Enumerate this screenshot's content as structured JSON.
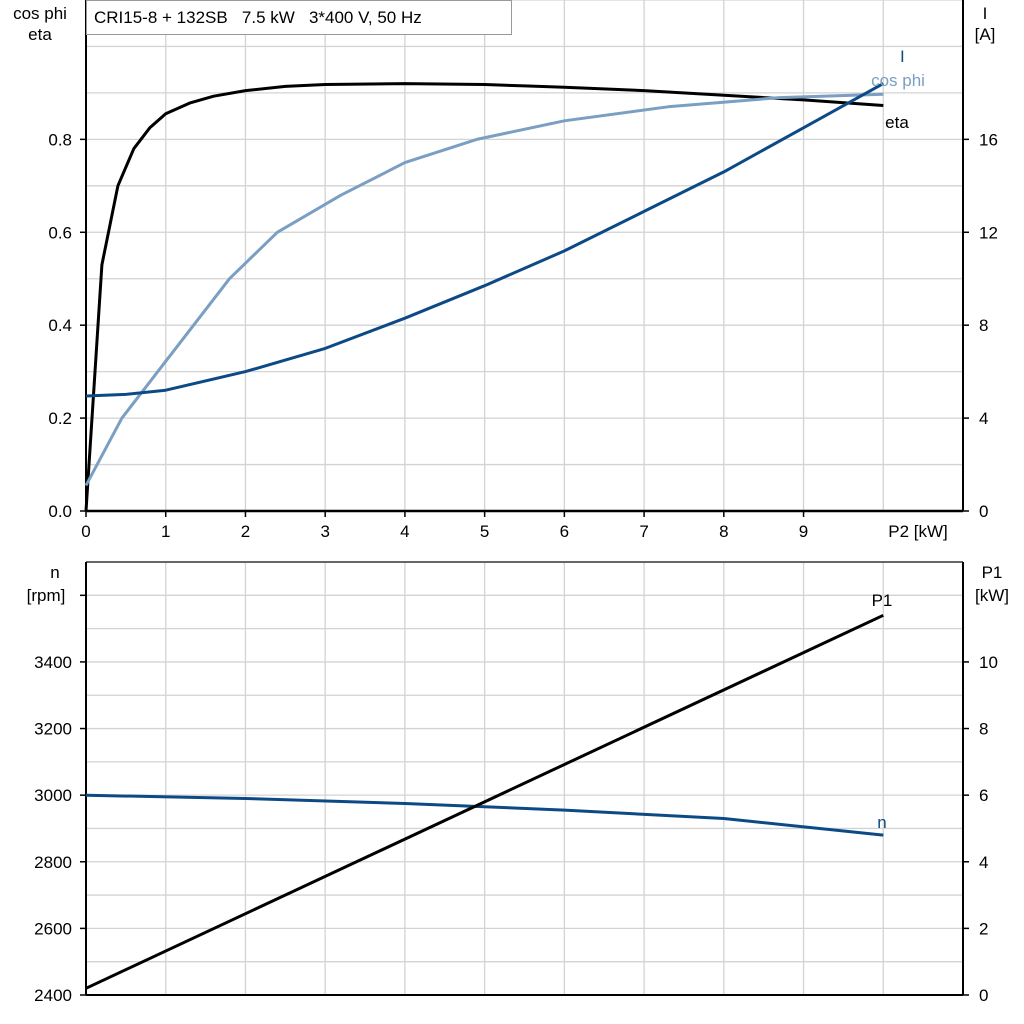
{
  "chart_data": [
    {
      "type": "line",
      "title": "CRI15-8 + 132SB   7.5 kW   3*400 V, 50 Hz",
      "xlabel": "P2 [kW]",
      "ylabel_left": [
        "cos phi",
        "eta"
      ],
      "ylabel_right": [
        "I",
        "[A]"
      ],
      "xlim": [
        0,
        11
      ],
      "ylim_left": [
        0,
        1.1
      ],
      "ylim_right": [
        0,
        22
      ],
      "x_ticks": [
        "0",
        "1",
        "2",
        "3",
        "4",
        "5",
        "6",
        "7",
        "8",
        "9"
      ],
      "y_ticks_left": [
        "0.0",
        "0.2",
        "0.4",
        "0.6",
        "0.8"
      ],
      "y_ticks_right": [
        "0",
        "4",
        "8",
        "12",
        "16"
      ],
      "grid": true,
      "colors": {
        "eta": "#000000",
        "cos phi": "#7a9fc2",
        "I": "#0d4a85"
      },
      "series": [
        {
          "name": "eta",
          "axis": "left",
          "x": [
            0,
            0.2,
            0.4,
            0.6,
            0.8,
            1.0,
            1.3,
            1.6,
            2,
            2.5,
            3,
            4,
            5,
            5.5,
            6,
            7,
            8,
            8.5,
            9,
            10
          ],
          "y": [
            0,
            0.53,
            0.7,
            0.78,
            0.825,
            0.855,
            0.878,
            0.893,
            0.905,
            0.914,
            0.918,
            0.92,
            0.918,
            0.915,
            0.912,
            0.905,
            0.895,
            0.89,
            0.885,
            0.873
          ]
        },
        {
          "name": "cos phi",
          "axis": "left",
          "x": [
            0,
            0.45,
            0.9,
            1.35,
            1.8,
            2.4,
            3.2,
            4,
            4.9,
            6,
            7.3,
            8.7,
            10
          ],
          "y": [
            0.055,
            0.2,
            0.3,
            0.4,
            0.5,
            0.6,
            0.68,
            0.75,
            0.8,
            0.84,
            0.87,
            0.89,
            0.897
          ]
        },
        {
          "name": "I",
          "axis": "right",
          "x": [
            0,
            0.5,
            1,
            2,
            3,
            4,
            5,
            6,
            7,
            8,
            9,
            10
          ],
          "y": [
            4.95,
            5.02,
            5.2,
            6.0,
            7.0,
            8.3,
            9.7,
            11.2,
            12.9,
            14.6,
            16.5,
            18.4
          ]
        }
      ]
    },
    {
      "type": "line",
      "xlim": [
        0,
        11
      ],
      "ylabel_left": [
        "n",
        "[rpm]"
      ],
      "ylabel_right": [
        "P1",
        "[kW]"
      ],
      "ylim_left": [
        2400,
        3700
      ],
      "ylim_right": [
        0,
        13
      ],
      "y_ticks_left": [
        "2400",
        "2600",
        "2800",
        "3000",
        "3200",
        "3400"
      ],
      "y_ticks_right": [
        "0",
        "2",
        "4",
        "6",
        "8",
        "10"
      ],
      "grid": true,
      "colors": {
        "n": "#0d4a85",
        "P1": "#000000"
      },
      "series": [
        {
          "name": "n",
          "axis": "left",
          "x": [
            0,
            2,
            4,
            6,
            8,
            10
          ],
          "y": [
            3000,
            2990,
            2975,
            2955,
            2930,
            2880
          ]
        },
        {
          "name": "P1",
          "axis": "right",
          "x": [
            0,
            10
          ],
          "y": [
            0.2,
            11.4
          ]
        }
      ]
    }
  ]
}
